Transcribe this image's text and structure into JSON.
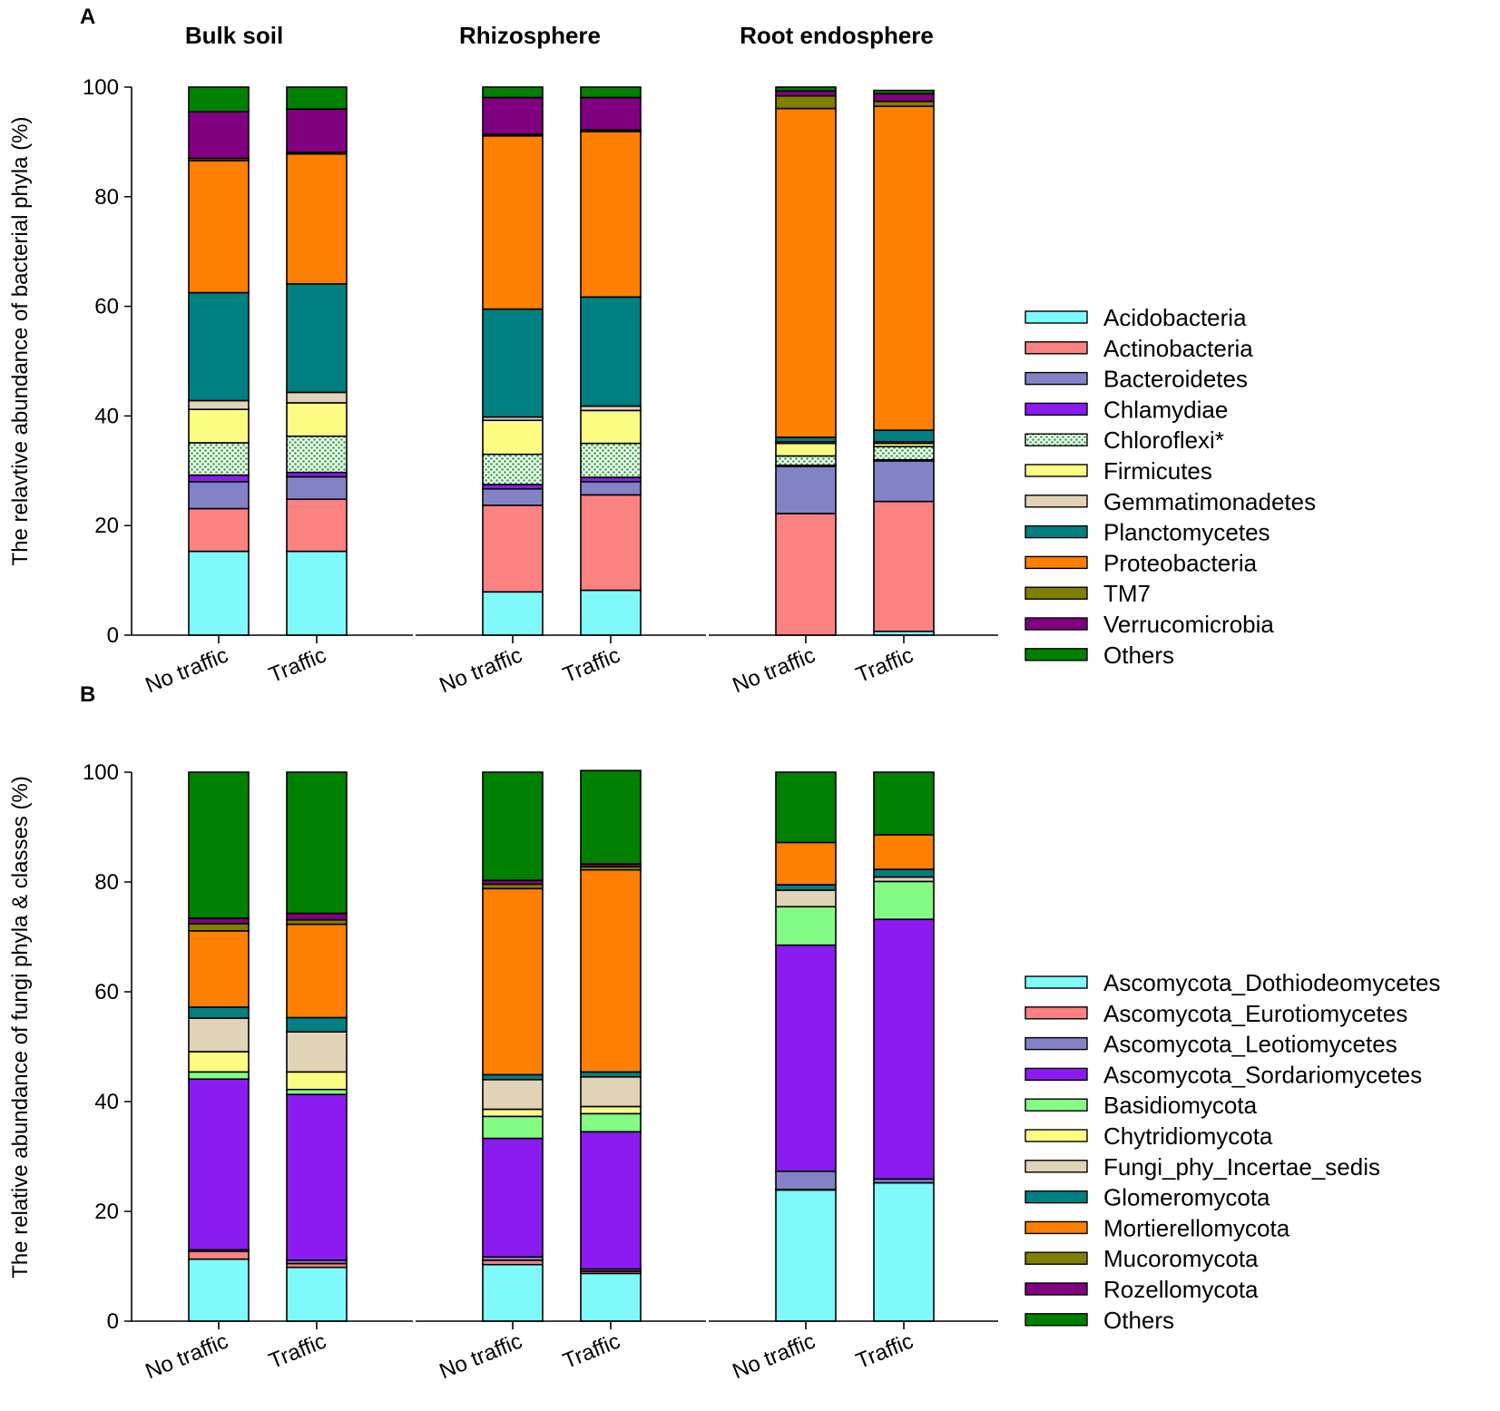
{
  "chart_data": [
    {
      "type": "stacked-bar",
      "panel": "A",
      "ylabel": "The relavtive abundance of bacterial phyla (%)",
      "ylim": [
        0,
        100
      ],
      "yticks": [
        0,
        20,
        40,
        60,
        80,
        100
      ],
      "groups": [
        "Bulk soil",
        "Rhizosphere",
        "Root endosphere"
      ],
      "categories": [
        "No traffic",
        "Traffic",
        "No traffic",
        "Traffic",
        "No traffic",
        "Traffic"
      ],
      "series": [
        {
          "name": "Acidobacteria",
          "color": "#7ff9f9",
          "values": [
            15.3,
            15.3,
            7.9,
            8.2,
            0.0,
            0.7
          ]
        },
        {
          "name": "Actinobacteria",
          "color": "#fc8282",
          "values": [
            7.8,
            9.5,
            15.8,
            17.4,
            22.2,
            23.7
          ]
        },
        {
          "name": "Bacteroidetes",
          "color": "#8482c7",
          "values": [
            4.9,
            4.1,
            3.0,
            2.4,
            8.6,
            7.4
          ]
        },
        {
          "name": "Chlamydiae",
          "color": "#8b1bf0",
          "values": [
            1.2,
            0.8,
            0.8,
            0.8,
            0.2,
            0.2
          ]
        },
        {
          "name": "Chloroflexi*",
          "color": "#7cd98a",
          "pattern": "dots",
          "values": [
            5.9,
            6.6,
            5.5,
            6.2,
            1.7,
            2.4
          ]
        },
        {
          "name": "Firmicutes",
          "color": "#fdfc82",
          "values": [
            6.1,
            6.1,
            6.2,
            6.0,
            2.3,
            0.6
          ]
        },
        {
          "name": "Gemmatimonadetes",
          "color": "#e0d3b6",
          "values": [
            1.6,
            1.9,
            0.6,
            0.8,
            0.3,
            0.3
          ]
        },
        {
          "name": "Planctomycetes",
          "color": "#008080",
          "values": [
            19.7,
            19.8,
            19.7,
            19.9,
            0.8,
            2.1
          ]
        },
        {
          "name": "Proteobacteria",
          "color": "#ff8000",
          "values": [
            24.1,
            23.7,
            31.6,
            30.2,
            60.0,
            59.1
          ]
        },
        {
          "name": "TM7",
          "color": "#808000",
          "values": [
            0.4,
            0.3,
            0.3,
            0.3,
            2.3,
            0.9
          ]
        },
        {
          "name": "Verrucomicrobia",
          "color": "#800080",
          "values": [
            8.5,
            7.9,
            6.7,
            5.9,
            0.9,
            1.4
          ]
        },
        {
          "name": "Others",
          "color": "#008000",
          "values": [
            4.5,
            4.0,
            1.9,
            1.9,
            0.7,
            0.6
          ]
        }
      ]
    },
    {
      "type": "stacked-bar",
      "panel": "B",
      "ylabel": "The relative abundance of fungi phyla & classes (%)",
      "ylim": [
        0,
        100
      ],
      "yticks": [
        0,
        20,
        40,
        60,
        80,
        100
      ],
      "groups": [
        "Bulk soil",
        "Rhizosphere",
        "Root endosphere"
      ],
      "categories": [
        "No traffic",
        "Traffic",
        "No traffic",
        "Traffic",
        "No traffic",
        "Traffic"
      ],
      "series": [
        {
          "name": "Ascomycota_Dothiodeomycetes",
          "color": "#7ff9f9",
          "values": [
            11.3,
            9.8,
            10.3,
            8.7,
            23.9,
            25.2
          ]
        },
        {
          "name": "Ascomycota_Eurotiomycetes",
          "color": "#fc8282",
          "values": [
            1.4,
            0.7,
            0.8,
            0.4,
            0.1,
            0.0
          ]
        },
        {
          "name": "Ascomycota_Leotiomycetes",
          "color": "#8482c7",
          "values": [
            0.3,
            0.6,
            0.6,
            0.4,
            3.3,
            0.7
          ]
        },
        {
          "name": "Ascomycota_Sordariomycetes",
          "color": "#8b1bf0",
          "values": [
            31.1,
            30.2,
            21.6,
            25.0,
            41.2,
            47.3
          ]
        },
        {
          "name": "Basidiomycota",
          "color": "#84fc84",
          "values": [
            1.3,
            0.9,
            4.0,
            3.3,
            7.0,
            6.9
          ]
        },
        {
          "name": "Chytridiomycota",
          "color": "#fdfc82",
          "values": [
            3.7,
            3.2,
            1.3,
            1.3,
            0.0,
            0.0
          ]
        },
        {
          "name": "Fungi_phy_Incertae_sedis",
          "color": "#e0d3b6",
          "values": [
            6.1,
            7.3,
            5.4,
            5.4,
            3.0,
            0.8
          ]
        },
        {
          "name": "Glomeromycota",
          "color": "#008080",
          "values": [
            2.0,
            2.6,
            0.9,
            0.9,
            1.0,
            1.4
          ]
        },
        {
          "name": "Mortierellomycota",
          "color": "#ff8000",
          "values": [
            13.9,
            17.0,
            33.9,
            36.8,
            7.7,
            6.3
          ]
        },
        {
          "name": "Mucoromycota",
          "color": "#808000",
          "values": [
            1.3,
            0.8,
            0.8,
            0.6,
            0.0,
            0.0
          ]
        },
        {
          "name": "Rozellomycota",
          "color": "#800080",
          "values": [
            1.0,
            1.2,
            0.7,
            0.5,
            0.0,
            0.0
          ]
        },
        {
          "name": "Others",
          "color": "#008000",
          "values": [
            26.6,
            25.7,
            19.7,
            17.0,
            12.8,
            11.4
          ]
        }
      ]
    }
  ]
}
